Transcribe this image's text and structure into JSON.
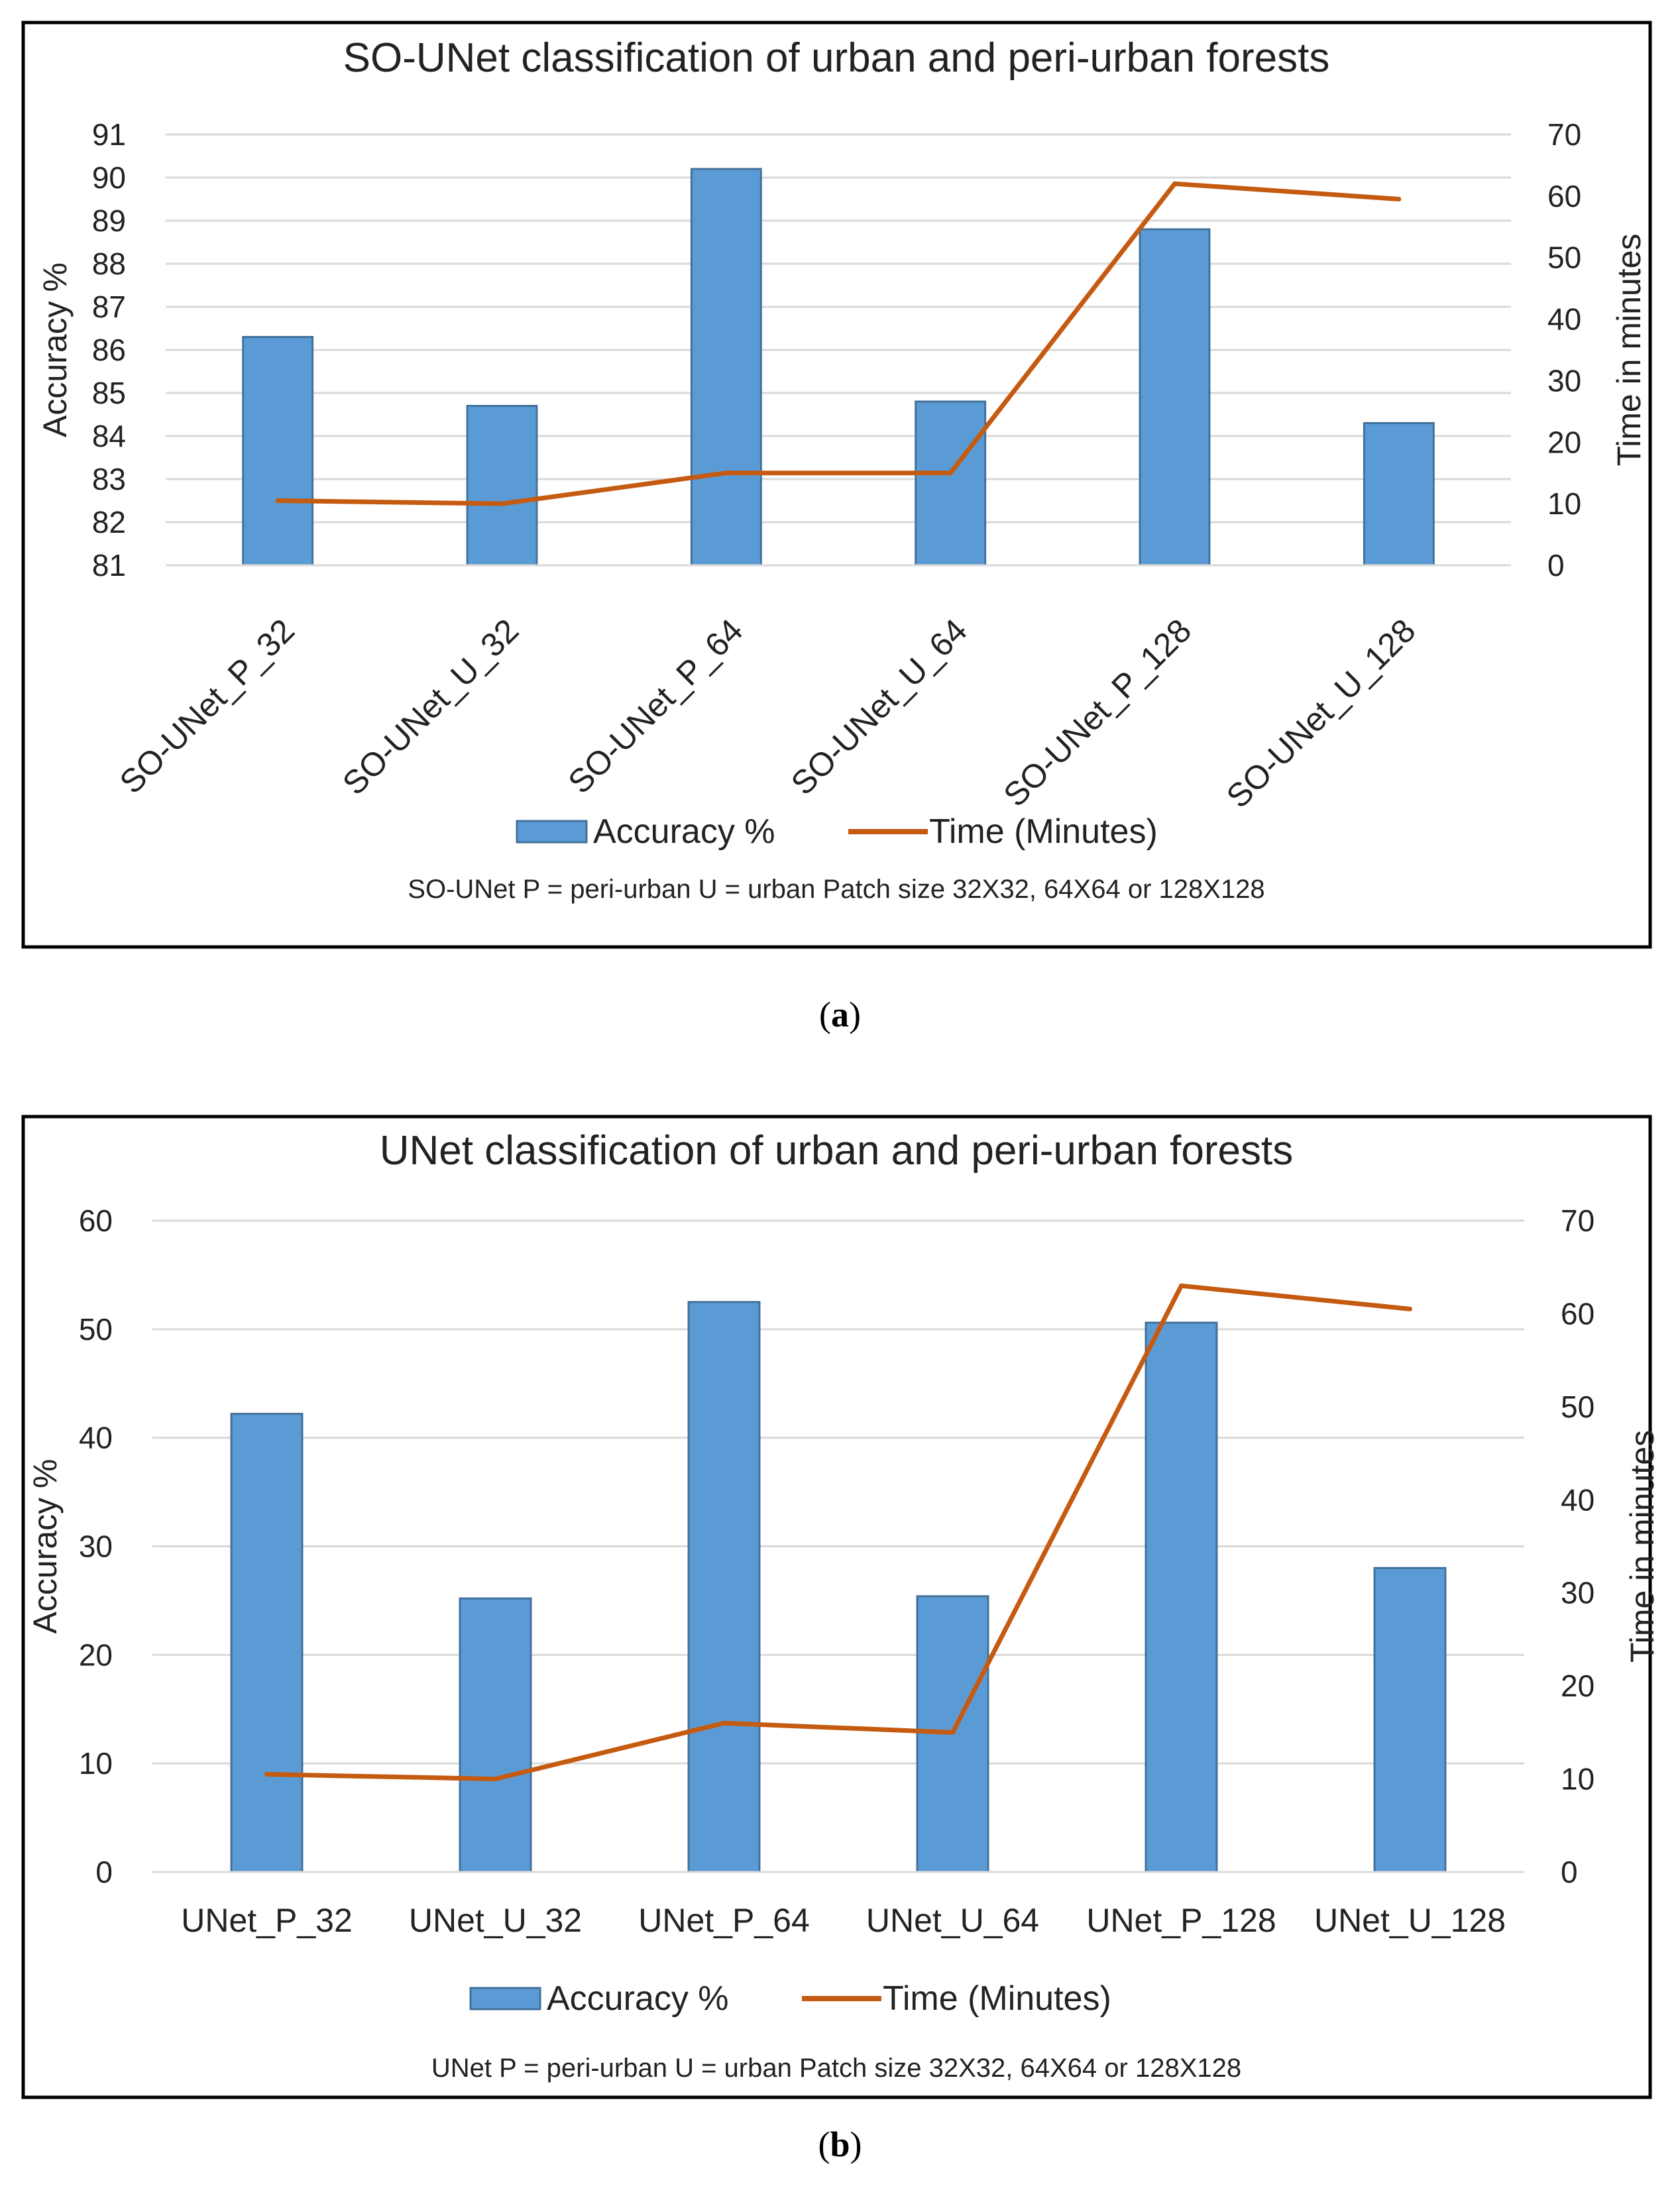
{
  "figures": [
    {
      "chart_data": {
        "type": "bar",
        "title": "SO-UNet  classification of urban and peri-urban forests",
        "categories": [
          "SO-UNet_P_32",
          "SO-UNet_U_32",
          "SO-UNet_P_64",
          "SO-UNet_U_64",
          "SO-UNet_P_128",
          "SO-UNet_U_128"
        ],
        "series": [
          {
            "name": "Accuracy %",
            "kind": "bar",
            "axis": "left",
            "color": "#5B9BD5",
            "values": [
              86.3,
              84.7,
              90.2,
              84.8,
              88.8,
              84.3
            ]
          },
          {
            "name": "Time (Minutes)",
            "kind": "line",
            "axis": "right",
            "color": "#C55A11",
            "values": [
              10.5,
              10,
              15,
              15,
              62,
              59.5
            ]
          }
        ],
        "ylabel": "Accuracy %",
        "ylabel_right": "Time in minutes",
        "ylim": [
          81,
          91
        ],
        "yticks": [
          81,
          82,
          83,
          84,
          85,
          86,
          87,
          88,
          89,
          90,
          91
        ],
        "ylim_right": [
          0,
          70
        ],
        "yticks_right": [
          0,
          10,
          20,
          30,
          40,
          50,
          60,
          70
        ],
        "xtick_rotation": -45,
        "grid": true,
        "legend": "bottom",
        "note": "SO-UNet  P = peri-urban U = urban Patch size 32X32, 64X64 or 128X128"
      },
      "caption_letter": "a"
    },
    {
      "chart_data": {
        "type": "bar",
        "title": "UNet  classification of urban and peri-urban forests",
        "categories": [
          "UNet_P_32",
          "UNet_U_32",
          "UNet_P_64",
          "UNet_U_64",
          "UNet_P_128",
          "UNet_U_128"
        ],
        "series": [
          {
            "name": "Accuracy %",
            "kind": "bar",
            "axis": "left",
            "color": "#5B9BD5",
            "values": [
              42.2,
              25.2,
              52.5,
              25.4,
              50.6,
              28.0
            ]
          },
          {
            "name": "Time (Minutes)",
            "kind": "line",
            "axis": "right",
            "color": "#C55A11",
            "values": [
              10.5,
              10,
              16,
              15,
              63,
              60.5
            ]
          }
        ],
        "ylabel": "Accuracy %",
        "ylabel_right": "Time in minutes",
        "ylim": [
          0,
          60
        ],
        "yticks": [
          0,
          10,
          20,
          30,
          40,
          50,
          60
        ],
        "ylim_right": [
          0,
          70
        ],
        "yticks_right": [
          0,
          10,
          20,
          30,
          40,
          50,
          60,
          70
        ],
        "xtick_rotation": 0,
        "grid": true,
        "legend": "bottom",
        "note": "UNet  P = peri-urban U = urban Patch size 32X32, 64X64 or 128X128"
      },
      "caption_letter": "b"
    }
  ]
}
